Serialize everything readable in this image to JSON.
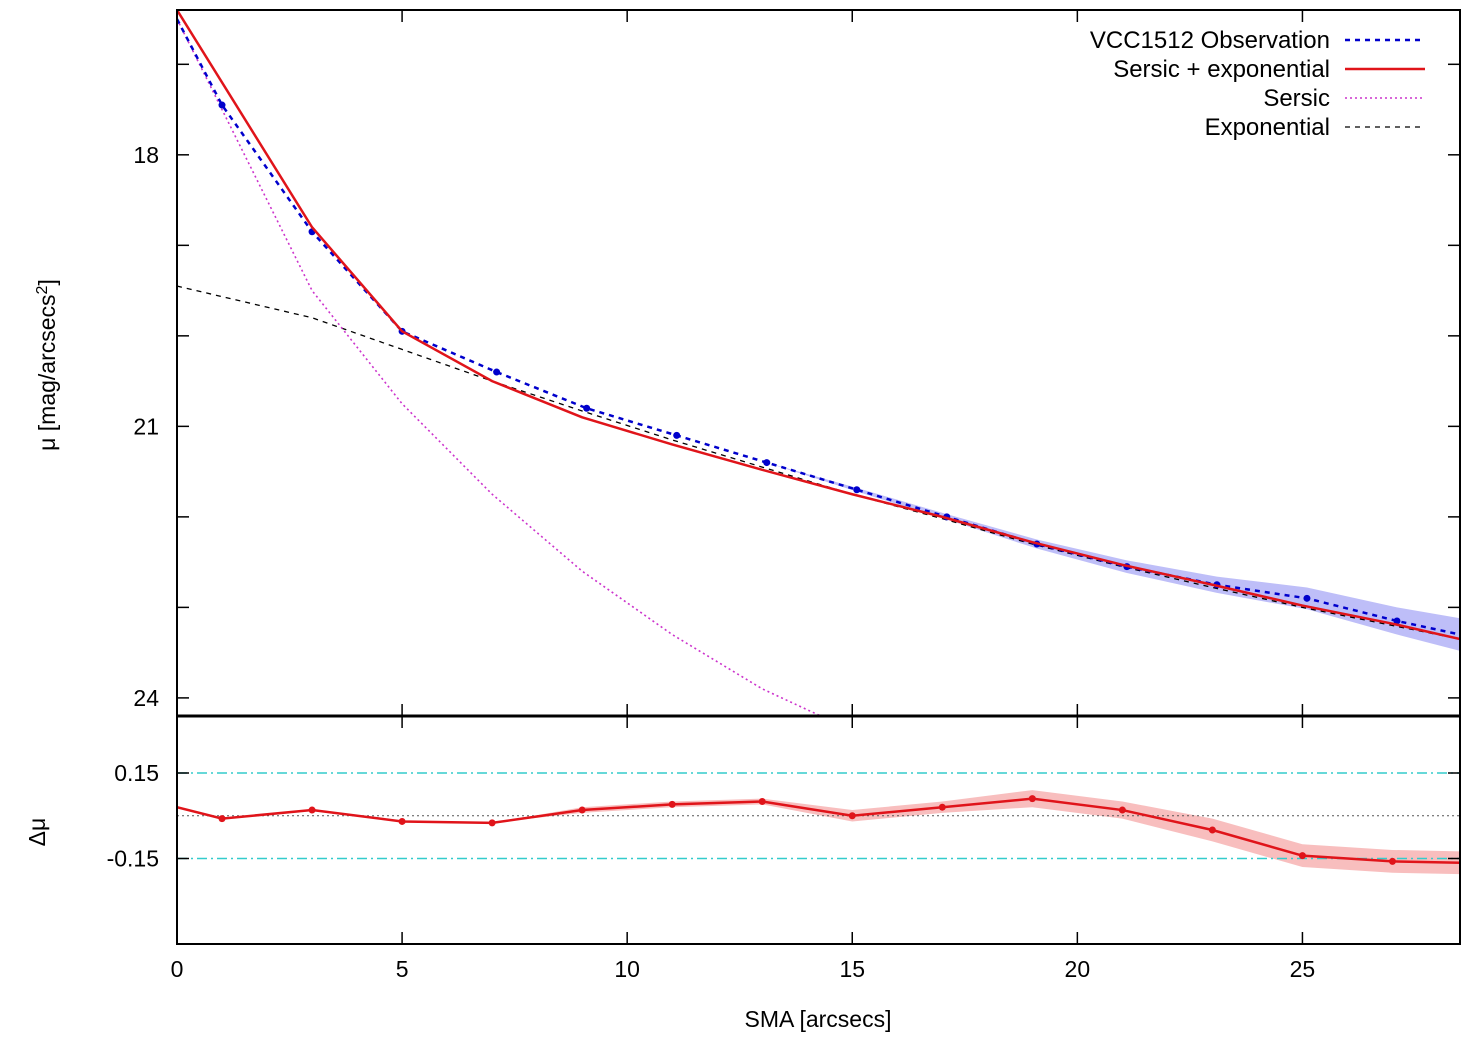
{
  "chart_data": [
    {
      "type": "line",
      "panel": "top",
      "xlabel": "",
      "ylabel": "μ [mag/arcsecs²]",
      "xlim": [
        0,
        28.5
      ],
      "ylim": [
        16.4,
        24.2
      ],
      "y_inverted": true,
      "yticks": [
        18,
        21,
        24
      ],
      "y_minor_ticks": [
        17,
        18,
        19,
        20,
        21,
        22,
        23,
        24
      ],
      "legend_position": "top-right",
      "series": [
        {
          "name": "VCC1512 Observation",
          "style": "blue-dashed-points-band",
          "x": [
            0,
            1,
            3,
            5,
            7.1,
            9.1,
            11.1,
            13.1,
            15.1,
            17.1,
            19.1,
            21.1,
            23.1,
            25.1,
            27.1,
            28.5
          ],
          "y": [
            16.5,
            17.45,
            18.85,
            19.95,
            20.4,
            20.8,
            21.1,
            21.4,
            21.7,
            22.0,
            22.3,
            22.55,
            22.75,
            22.9,
            23.15,
            23.3
          ],
          "band": [
            0,
            0,
            0,
            0,
            0,
            0,
            0,
            0,
            0.02,
            0.03,
            0.05,
            0.07,
            0.09,
            0.12,
            0.15,
            0.18
          ]
        },
        {
          "name": "Sersic + exponential",
          "style": "red-solid",
          "x": [
            0,
            3,
            5,
            7,
            9,
            11,
            13,
            15,
            17,
            19,
            21,
            23,
            25,
            27,
            28.5
          ],
          "y": [
            16.4,
            18.8,
            19.95,
            20.5,
            20.9,
            21.2,
            21.48,
            21.75,
            22.0,
            22.28,
            22.53,
            22.75,
            22.98,
            23.18,
            23.35
          ]
        },
        {
          "name": "Sersic",
          "style": "magenta-dotted",
          "x": [
            0,
            1,
            3,
            5,
            7,
            9,
            11,
            13,
            14.3
          ],
          "y": [
            16.5,
            17.5,
            19.5,
            20.75,
            21.75,
            22.6,
            23.3,
            23.9,
            24.2
          ]
        },
        {
          "name": "Exponential",
          "style": "black-dashed",
          "x": [
            0,
            3,
            5,
            7,
            9,
            11,
            13,
            15,
            17,
            19,
            21,
            23,
            25,
            27,
            28.5
          ],
          "y": [
            19.45,
            19.8,
            20.15,
            20.5,
            20.83,
            21.15,
            21.45,
            21.75,
            22.02,
            22.3,
            22.55,
            22.78,
            23.0,
            23.2,
            23.35
          ]
        }
      ]
    },
    {
      "type": "line",
      "panel": "bottom",
      "xlabel": "SMA [arcsecs]",
      "ylabel": "Δμ",
      "xlim": [
        0,
        28.5
      ],
      "ylim": [
        -0.45,
        0.35
      ],
      "xticks": [
        0,
        5,
        10,
        15,
        20,
        25
      ],
      "yticks": [
        0.15,
        -0.15
      ],
      "reference_lines": [
        0.15,
        -0.15,
        0
      ],
      "series": [
        {
          "name": "",
          "style": "red-solid-points-band",
          "x": [
            0,
            1,
            3,
            5,
            7,
            9,
            11,
            13,
            15,
            17,
            19,
            21,
            23,
            25,
            27,
            28.5
          ],
          "y": [
            0.03,
            -0.01,
            0.02,
            -0.02,
            -0.025,
            0.02,
            0.04,
            0.05,
            0.0,
            0.03,
            0.06,
            0.02,
            -0.05,
            -0.14,
            -0.16,
            -0.165
          ],
          "band": [
            0,
            0,
            0,
            0,
            0,
            0.01,
            0.01,
            0.01,
            0.02,
            0.02,
            0.03,
            0.03,
            0.04,
            0.04,
            0.04,
            0.04
          ]
        }
      ]
    }
  ]
}
